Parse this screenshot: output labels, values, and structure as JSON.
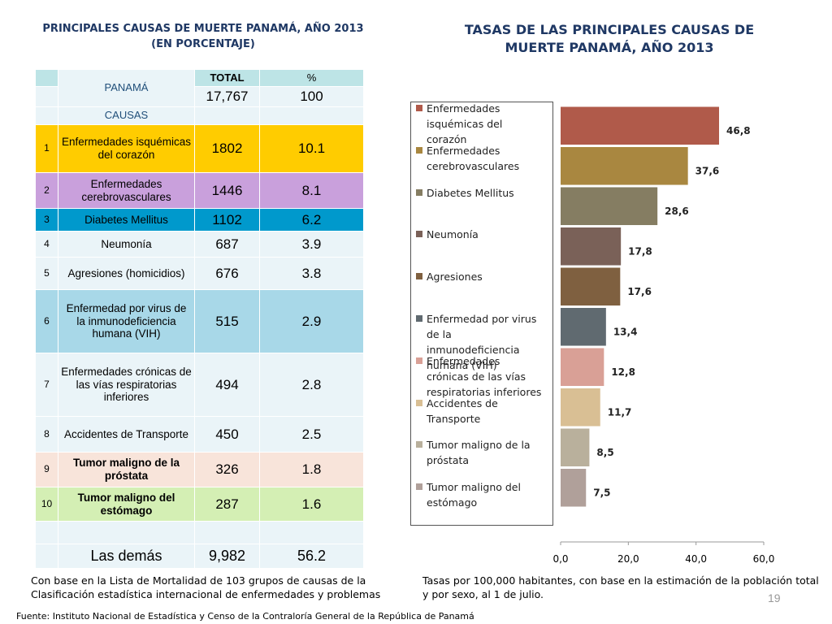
{
  "left_title": "PRINCIPALES CAUSAS DE MUERTE PANAMÁ, AÑO 2013",
  "left_subtitle": "(EN PORCENTAJE)",
  "table": {
    "header": {
      "country": "PANAMÁ",
      "total_label": "TOTAL",
      "pct_label": "%",
      "total": "17,767",
      "pct": "100",
      "causes_label": "CAUSAS"
    },
    "rows": [
      [
        "1",
        "Enfermedades isquémicas del corazón",
        "1802",
        "10.1"
      ],
      [
        "2",
        "Enfermedades cerebrovasculares",
        "1446",
        "8.1"
      ],
      [
        "3",
        "Diabetes Mellitus",
        "1102",
        "6.2"
      ],
      [
        "4",
        "Neumonía",
        "687",
        "3.9"
      ],
      [
        "5",
        "Agresiones (homicidios)",
        "676",
        "3.8"
      ],
      [
        "6",
        "Enfermedad por virus de la inmunodeficiencia humana (VIH)",
        "515",
        "2.9"
      ],
      [
        "7",
        "Enfermedades crónicas de las vías respiratorias inferiores",
        "494",
        "2.8"
      ],
      [
        "8",
        "Accidentes de Transporte",
        "450",
        "2.5"
      ],
      [
        "9",
        "Tumor maligno de la próstata",
        "326",
        "1.8"
      ],
      [
        "10",
        "Tumor maligno del estómago",
        "287",
        "1.6"
      ]
    ],
    "other": [
      "Las demás",
      "9,982",
      "56.2"
    ]
  },
  "left_note": "Con base en  la Lista  de Mortalidad de 103 grupos  de causas de la Clasificación  estadística  internacional  de enfermedades  y  problemas",
  "chart_data": {
    "type": "bar",
    "orientation": "horizontal",
    "title": "TASAS DE LAS PRINCIPALES CAUSAS DE MUERTE PANAMÁ, AÑO 2013",
    "categories": [
      "Enfermedades isquémicas del corazón",
      "Enfermedades cerebrovasculares",
      "Diabetes Mellitus",
      "Neumonía",
      "Agresiones",
      "Enfermedad por virus de la inmunodeficiencia humana (VIH)",
      "Enfermedades crónicas de las vías respiratorias inferiores",
      "Accidentes de Transporte",
      "Tumor maligno de la próstata",
      "Tumor maligno del estómago"
    ],
    "values": [
      46.8,
      37.6,
      28.6,
      17.8,
      17.6,
      13.4,
      12.8,
      11.7,
      8.5,
      7.5
    ],
    "value_labels": [
      "46,8",
      "37,6",
      "28,6",
      "17,8",
      "17,6",
      "13,4",
      "12,8",
      "11,7",
      "8,5",
      "7,5"
    ],
    "colors": [
      "#b05a4a",
      "#a98740",
      "#857d62",
      "#7a6158",
      "#7f6040",
      "#606a70",
      "#d9a096",
      "#d9bf94",
      "#b9b09c",
      "#b0a09a"
    ],
    "xlim": [
      0,
      60
    ],
    "xticks": [
      {
        "value": 0,
        "label": "0,0"
      },
      {
        "value": 20,
        "label": "20,0"
      },
      {
        "value": 40,
        "label": "40,0"
      },
      {
        "value": 60,
        "label": "60,0"
      }
    ],
    "legend": "left"
  },
  "right_note": "Tasas por 100,000  habitantes, con base en la estimación de la población total  y por sexo, al 1 de julio.",
  "source": "Fuente: Instituto Nacional de Estadística y Censo de la Contraloría General de la República de Panamá",
  "page_number": "19"
}
